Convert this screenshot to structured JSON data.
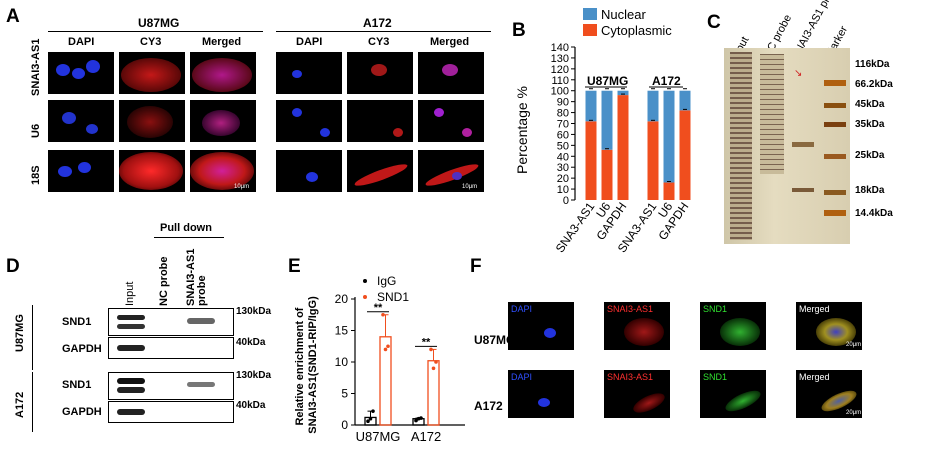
{
  "panelA": {
    "letter": "A",
    "groups": [
      "U87MG",
      "A172"
    ],
    "columns": [
      "DAPI",
      "CY3",
      "Merged"
    ],
    "rows": [
      "SNAI3-AS1",
      "U6",
      "18S"
    ],
    "scalebar": "10μm"
  },
  "panelB": {
    "letter": "B",
    "legend": [
      "Nuclear",
      "Cytoplasmic"
    ],
    "colors": {
      "nuclear": "#4a90c8",
      "cytoplasmic": "#f04e1e"
    },
    "groups": [
      "U87MG",
      "A172"
    ]
  },
  "panelC": {
    "letter": "C",
    "lanes": [
      "Input",
      "NC probe",
      "SNAI3-AS1 probe",
      "Marker"
    ],
    "markers": [
      "116kDa",
      "66.2kDa",
      "45kDa",
      "35kDa",
      "25kDa",
      "18kDa",
      "14.4kDa"
    ]
  },
  "panelD": {
    "letter": "D",
    "pulldown": "Pull down",
    "lanes": [
      "Input",
      "NC probe",
      "SNAI3-AS1 probe"
    ],
    "cells": [
      "U87MG",
      "A172"
    ],
    "proteins": [
      "SND1",
      "GAPDH"
    ],
    "sizes": [
      "130kDa",
      "40kDa",
      "130kDa",
      "40kDa"
    ]
  },
  "panelE": {
    "letter": "E",
    "legend": [
      "IgG",
      "SND1"
    ],
    "sig": [
      "**",
      "**"
    ]
  },
  "panelF": {
    "letter": "F",
    "columns": [
      "DAPI",
      "SNAI3-AS1",
      "SND1",
      "Merged"
    ],
    "rows": [
      "U87MG",
      "A172"
    ],
    "scalebar": "20μm"
  },
  "chart_data": [
    {
      "type": "bar",
      "stacked": true,
      "categories": [
        "SNA3-AS1",
        "U6",
        "GAPDH",
        "SNA3-AS1",
        "U6",
        "GAPDH"
      ],
      "groups": [
        "U87MG",
        "A172"
      ],
      "series": [
        {
          "name": "Nuclear",
          "values": [
            28,
            54,
            4,
            28,
            84,
            18
          ]
        },
        {
          "name": "Cytoplasmic",
          "values": [
            72,
            46,
            96,
            72,
            16,
            82
          ]
        }
      ],
      "ylabel": "Percentage %",
      "ylim": [
        0,
        140
      ],
      "yticks": [
        0,
        10,
        20,
        30,
        40,
        50,
        60,
        70,
        80,
        90,
        100,
        110,
        120,
        130,
        140
      ]
    },
    {
      "type": "bar",
      "categories": [
        "U87MG",
        "A172"
      ],
      "series": [
        {
          "name": "IgG",
          "values": [
            1.2,
            1.0
          ]
        },
        {
          "name": "SND1",
          "values": [
            14,
            10.2
          ]
        }
      ],
      "points": {
        "IgG": [
          [
            0.6,
            1.0,
            2.2
          ],
          [
            0.7,
            1.0,
            1.1
          ]
        ],
        "SND1": [
          [
            17.5,
            12.0,
            12.5
          ],
          [
            12.0,
            9.0,
            10.0
          ]
        ]
      },
      "ylabel": "Relative enrichment of SNAI3-AS1(SND1-RIP/IgG)",
      "ylim": [
        0,
        20
      ],
      "yticks": [
        0,
        5,
        10,
        15,
        20
      ]
    }
  ]
}
